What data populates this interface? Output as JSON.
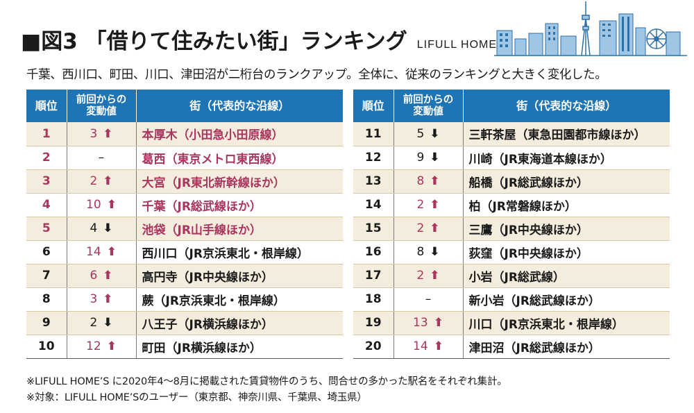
{
  "header": {
    "title": "■図3 「借りて住みたい街」ランキング",
    "brand": "LIFULL HOME’S"
  },
  "subtitle": "千葉、西川口、町田、川口、津田沼が二桁台のランクアップ。全体に、従来のランキングと大きく変化した。",
  "table": {
    "headers": {
      "rank": "順位",
      "change_line1": "前回からの",
      "change_line2": "変動値",
      "town": "街（代表的な沿線）"
    },
    "left": [
      {
        "rank": "1",
        "change": "3",
        "dir": "up",
        "town": "本厚木（小田急小田原線）",
        "highlight": true
      },
      {
        "rank": "2",
        "change": "–",
        "dir": "none",
        "town": "葛西（東京メトロ東西線）",
        "highlight": true
      },
      {
        "rank": "3",
        "change": "2",
        "dir": "up",
        "town": "大宮（JR東北新幹線ほか）",
        "highlight": true
      },
      {
        "rank": "4",
        "change": "10",
        "dir": "up",
        "town": "千葉（JR総武線ほか）",
        "highlight": true
      },
      {
        "rank": "5",
        "change": "4",
        "dir": "down",
        "town": "池袋（JR山手線ほか）",
        "highlight": true
      },
      {
        "rank": "6",
        "change": "14",
        "dir": "up",
        "town": "西川口（JR京浜東北・根岸線）",
        "highlight": false
      },
      {
        "rank": "7",
        "change": "6",
        "dir": "up",
        "town": "高円寺（JR中央線ほか）",
        "highlight": false
      },
      {
        "rank": "8",
        "change": "3",
        "dir": "up",
        "town": "蕨（JR京浜東北・根岸線）",
        "highlight": false
      },
      {
        "rank": "9",
        "change": "2",
        "dir": "down",
        "town": "八王子（JR横浜線ほか）",
        "highlight": false
      },
      {
        "rank": "10",
        "change": "12",
        "dir": "up",
        "town": "町田（JR横浜線ほか）",
        "highlight": false
      }
    ],
    "right": [
      {
        "rank": "11",
        "change": "5",
        "dir": "down",
        "town": "三軒茶屋（東急田園都市線ほか）",
        "highlight": false
      },
      {
        "rank": "12",
        "change": "9",
        "dir": "down",
        "town": "川崎（JR東海道本線ほか）",
        "highlight": false
      },
      {
        "rank": "13",
        "change": "8",
        "dir": "up",
        "town": "船橋（JR総武線ほか）",
        "highlight": false
      },
      {
        "rank": "14",
        "change": "2",
        "dir": "up",
        "town": "柏（JR常磐線ほか）",
        "highlight": false
      },
      {
        "rank": "15",
        "change": "2",
        "dir": "up",
        "town": "三鷹（JR中央線ほか）",
        "highlight": false
      },
      {
        "rank": "16",
        "change": "8",
        "dir": "down",
        "town": "荻窪（JR中央線ほか）",
        "highlight": false
      },
      {
        "rank": "17",
        "change": "2",
        "dir": "up",
        "town": "小岩（JR総武線）",
        "highlight": false
      },
      {
        "rank": "18",
        "change": "–",
        "dir": "none",
        "town": "新小岩（JR総武線ほか）",
        "highlight": false
      },
      {
        "rank": "19",
        "change": "13",
        "dir": "up",
        "town": "川口（JR京浜東北・根岸線）",
        "highlight": false
      },
      {
        "rank": "20",
        "change": "14",
        "dir": "up",
        "town": "津田沼（JR総武線ほか）",
        "highlight": false
      }
    ]
  },
  "notes": [
    "※LIFULL HOME’S に2020年4～8月に掲載された賃貸物件のうち、問合せの多かった駅名をそれぞれ集計。",
    "※対象：LIFULL HOME’Sのユーザー（東京都、神奈川県、千葉県、埼玉県）"
  ],
  "colors": {
    "header_bg": "#1f74b5",
    "row_alt_bg": "#f4ecdd",
    "highlight_text": "#a8365f",
    "up_arrow_color": "#a8365f",
    "down_arrow_color": "#1a1a1a"
  },
  "icons": {
    "up": "arrow-up-icon",
    "down": "arrow-down-icon",
    "skyline": "city-skyline-icon"
  }
}
